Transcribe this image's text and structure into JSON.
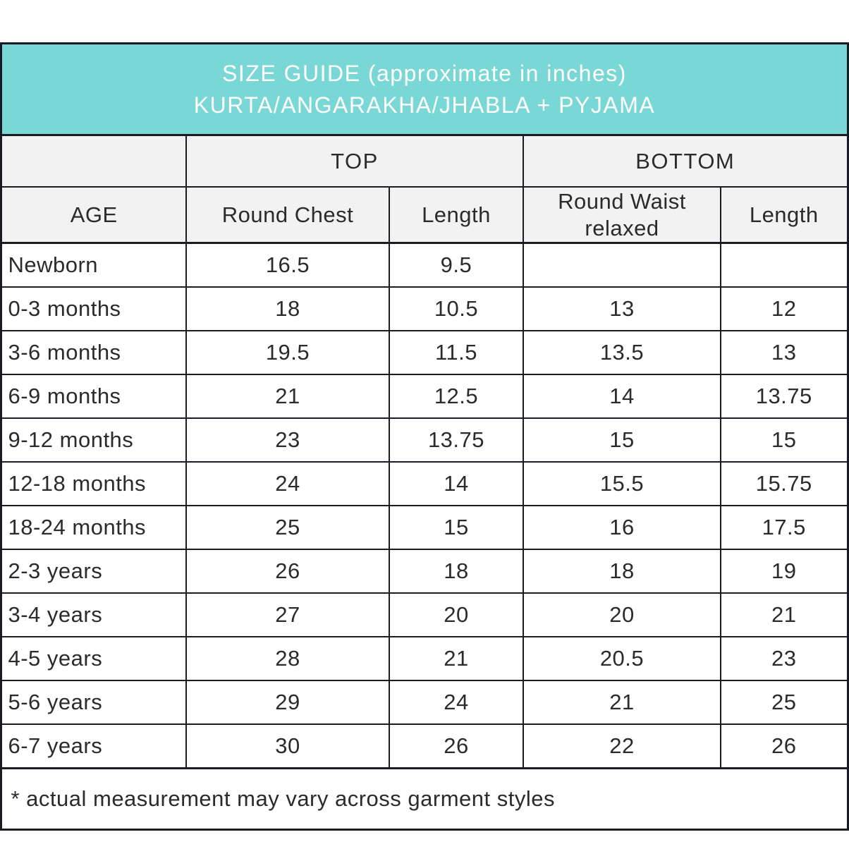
{
  "banner": {
    "line1": "SIZE GUIDE (approximate in inches)",
    "line2": "KURTA/ANGARAKHA/JHABLA + PYJAMA"
  },
  "colors": {
    "banner_bg": "#79d7d5",
    "banner_text": "#ffffff",
    "header_bg": "#f2f2f2",
    "row_bg": "#ffffff",
    "border": "#1a1a24",
    "text": "#2b2b2b"
  },
  "table": {
    "group_headers": [
      {
        "label": "TOP",
        "span": 2
      },
      {
        "label": "BOTTOM",
        "span": 2
      }
    ],
    "columns": [
      "AGE",
      "Round Chest",
      "Length",
      "Round Waist relaxed",
      "Length"
    ],
    "rows": [
      {
        "age": "Newborn",
        "values": [
          "16.5",
          "9.5",
          "",
          ""
        ]
      },
      {
        "age": "0-3 months",
        "values": [
          "18",
          "10.5",
          "13",
          "12"
        ]
      },
      {
        "age": "3-6 months",
        "values": [
          "19.5",
          "11.5",
          "13.5",
          "13"
        ]
      },
      {
        "age": "6-9 months",
        "values": [
          "21",
          "12.5",
          "14",
          "13.75"
        ]
      },
      {
        "age": "9-12 months",
        "values": [
          "23",
          "13.75",
          "15",
          "15"
        ]
      },
      {
        "age": "12-18 months",
        "values": [
          "24",
          "14",
          "15.5",
          "15.75"
        ]
      },
      {
        "age": "18-24 months",
        "values": [
          "25",
          "15",
          "16",
          "17.5"
        ]
      },
      {
        "age": "2-3 years",
        "values": [
          "26",
          "18",
          "18",
          "19"
        ]
      },
      {
        "age": "3-4 years",
        "values": [
          "27",
          "20",
          "20",
          "21"
        ]
      },
      {
        "age": "4-5 years",
        "values": [
          "28",
          "21",
          "20.5",
          "23"
        ]
      },
      {
        "age": "5-6 years",
        "values": [
          "29",
          "24",
          "21",
          "25"
        ]
      },
      {
        "age": "6-7 years",
        "values": [
          "30",
          "26",
          "22",
          "26"
        ]
      }
    ],
    "footnote": "* actual measurement may vary across garment styles"
  },
  "chart_data": {
    "type": "table",
    "title": "SIZE GUIDE (approximate in inches) KURTA/ANGARAKHA/JHABLA + PYJAMA",
    "column_groups": [
      "",
      "TOP",
      "TOP",
      "BOTTOM",
      "BOTTOM"
    ],
    "columns": [
      "AGE",
      "Round Chest",
      "Length",
      "Round Waist relaxed",
      "Length"
    ],
    "rows": [
      [
        "Newborn",
        16.5,
        9.5,
        null,
        null
      ],
      [
        "0-3 months",
        18,
        10.5,
        13,
        12
      ],
      [
        "3-6 months",
        19.5,
        11.5,
        13.5,
        13
      ],
      [
        "6-9 months",
        21,
        12.5,
        14,
        13.75
      ],
      [
        "9-12 months",
        23,
        13.75,
        15,
        15
      ],
      [
        "12-18 months",
        24,
        14,
        15.5,
        15.75
      ],
      [
        "18-24 months",
        25,
        15,
        16,
        17.5
      ],
      [
        "2-3 years",
        26,
        18,
        18,
        19
      ],
      [
        "3-4 years",
        27,
        20,
        20,
        21
      ],
      [
        "4-5 years",
        28,
        21,
        20.5,
        23
      ],
      [
        "5-6 years",
        29,
        24,
        21,
        25
      ],
      [
        "6-7 years",
        30,
        26,
        22,
        26
      ]
    ],
    "units": "inches",
    "footnote": "* actual measurement may vary across garment styles"
  }
}
